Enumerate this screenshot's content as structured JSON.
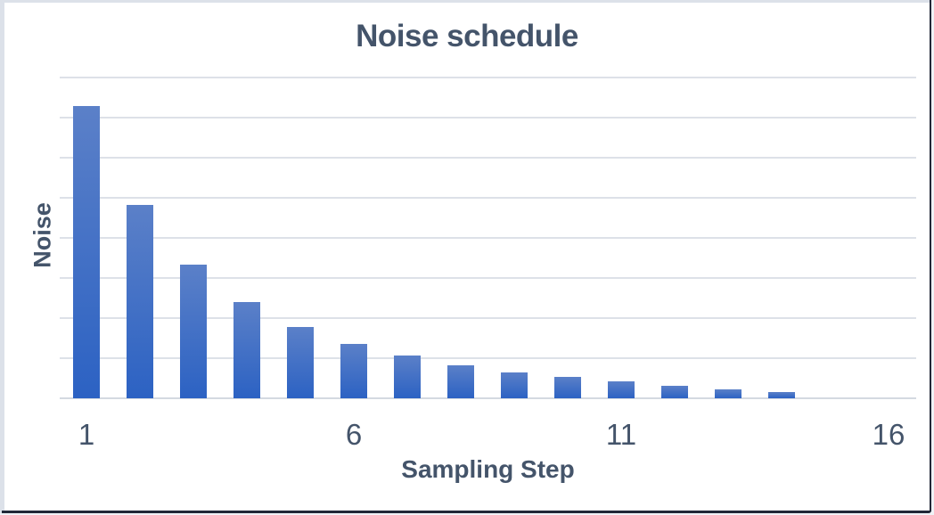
{
  "chart_data": {
    "type": "bar",
    "title": "Noise schedule",
    "xlabel": "Sampling Step",
    "ylabel": "Noise",
    "categories": [
      "1",
      "2",
      "3",
      "4",
      "5",
      "6",
      "7",
      "8",
      "9",
      "10",
      "11",
      "12",
      "13",
      "14",
      "15",
      "16"
    ],
    "values": [
      7.3,
      4.82,
      3.33,
      2.4,
      1.78,
      1.36,
      1.07,
      0.82,
      0.64,
      0.53,
      0.42,
      0.31,
      0.22,
      0.16,
      0,
      0
    ],
    "x_tick_labels": [
      "1",
      "6",
      "11",
      "16"
    ],
    "x_tick_positions": [
      1,
      6,
      11,
      16
    ],
    "ylim": [
      0,
      8
    ],
    "y_gridline_interval": 1,
    "y_tick_labels_visible": false,
    "grid": true,
    "legend": "none",
    "colors": {
      "bar_gradient_top": "#5b80c8",
      "bar_gradient_bottom": "#2c62c3",
      "gridline": "#dde1e8",
      "axis_line": "#d4d9e1",
      "text": "#44546a"
    }
  },
  "frame": {
    "edge_light": "#dce1e9",
    "edge_dark": "#212838",
    "edge_outer_light": "#f0f2f6",
    "background": "#ffffff"
  }
}
